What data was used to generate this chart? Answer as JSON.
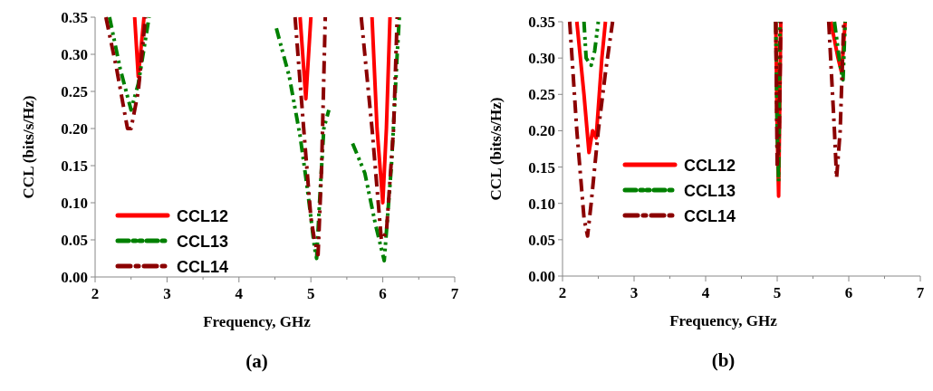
{
  "chart_data": [
    {
      "type": "line",
      "xlabel": "Frequency, GHz",
      "ylabel": "CCL (bits/s/Hz)",
      "annotations": [
        "(a)"
      ],
      "xlim": [
        2,
        7
      ],
      "xticks": [
        2,
        3,
        4,
        5,
        6,
        7
      ],
      "ylim": [
        0,
        0.35
      ],
      "yticks": [
        {
          "value": 0,
          "label": "0.00"
        },
        {
          "value": 0.05,
          "label": "0.05"
        },
        {
          "value": 0.1,
          "label": "0.10"
        },
        {
          "value": 0.15,
          "label": "0.15"
        },
        {
          "value": 0.2,
          "label": "0.20"
        },
        {
          "value": 0.25,
          "label": "0.25"
        },
        {
          "value": 0.3,
          "label": "0.30"
        },
        {
          "value": 0.35,
          "label": "0.35"
        }
      ],
      "legend": "bottom left",
      "grid": false,
      "series": [
        {
          "name": "CCL12",
          "color": "#ff0000",
          "line_style": "solid",
          "x": [
            2.55,
            2.6,
            2.68,
            2.7,
            4.85,
            4.93,
            5.0,
            5.02,
            5.85,
            5.92,
            6.0,
            6.05,
            6.1
          ],
          "values": [
            0.35,
            0.27,
            0.35,
            null,
            0.35,
            0.24,
            0.35,
            null,
            0.35,
            0.2,
            0.1,
            0.2,
            0.35
          ]
        },
        {
          "name": "CCL13",
          "color": "#008000",
          "line_style": "dotted",
          "x": [
            2.2,
            2.35,
            2.5,
            2.6,
            2.75,
            2.8,
            4.52,
            4.7,
            4.85,
            4.95,
            5.05,
            5.08,
            5.12,
            5.18,
            5.25,
            5.4,
            5.58,
            5.75,
            5.9,
            6.02,
            6.12,
            6.2,
            6.23
          ],
          "values": [
            0.35,
            0.28,
            0.225,
            0.26,
            0.35,
            null,
            0.335,
            0.27,
            0.19,
            0.12,
            0.04,
            0.025,
            0.1,
            0.2,
            0.225,
            null,
            0.18,
            0.14,
            0.07,
            0.022,
            0.15,
            0.3,
            0.35
          ]
        },
        {
          "name": "CCL14",
          "color": "#8b0000",
          "line_style": "dashed",
          "x": [
            2.15,
            2.3,
            2.45,
            2.5,
            2.6,
            2.7,
            2.75,
            4.78,
            4.9,
            5.0,
            5.05,
            5.1,
            5.15,
            5.2,
            5.3,
            5.7,
            5.85,
            5.98,
            6.05,
            6.15,
            6.2
          ],
          "values": [
            0.35,
            0.28,
            0.2,
            0.2,
            0.25,
            0.35,
            null,
            0.35,
            0.2,
            0.08,
            0.05,
            0.03,
            0.15,
            0.35,
            null,
            0.35,
            0.2,
            0.05,
            0.06,
            0.2,
            0.35
          ]
        }
      ]
    },
    {
      "type": "line",
      "xlabel": "Frequency, GHz",
      "ylabel": "CCL (bits/s/Hz)",
      "annotations": [
        "(b)"
      ],
      "xlim": [
        2,
        7
      ],
      "xticks": [
        2,
        3,
        4,
        5,
        6,
        7
      ],
      "ylim": [
        0,
        0.35
      ],
      "yticks": [
        {
          "value": 0,
          "label": "0.00"
        },
        {
          "value": 0.05,
          "label": "0.05"
        },
        {
          "value": 0.1,
          "label": "0.10"
        },
        {
          "value": 0.15,
          "label": "0.15"
        },
        {
          "value": 0.2,
          "label": "0.20"
        },
        {
          "value": 0.25,
          "label": "0.25"
        },
        {
          "value": 0.3,
          "label": "0.30"
        },
        {
          "value": 0.35,
          "label": "0.35"
        }
      ],
      "legend": "left",
      "grid": false,
      "series": [
        {
          "name": "CCL12",
          "color": "#ff0000",
          "line_style": "solid",
          "x": [
            2.2,
            2.3,
            2.37,
            2.42,
            2.47,
            2.55,
            2.6,
            2.8,
            4.98,
            5.0,
            5.02,
            5.05,
            5.5,
            5.75,
            5.85,
            5.9,
            5.95
          ],
          "values": [
            0.35,
            0.25,
            0.17,
            0.2,
            0.19,
            0.3,
            0.35,
            null,
            0.35,
            0.2,
            0.11,
            0.35,
            null,
            0.35,
            0.3,
            0.28,
            0.35
          ]
        },
        {
          "name": "CCL13",
          "color": "#008000",
          "line_style": "dotted",
          "x": [
            2.3,
            2.33,
            2.4,
            2.45,
            2.5,
            2.8,
            4.98,
            5.0,
            5.02,
            5.04,
            5.5,
            5.8,
            5.88,
            5.92,
            5.95
          ],
          "values": [
            0.35,
            0.3,
            0.29,
            0.31,
            0.35,
            null,
            0.35,
            0.2,
            0.13,
            0.35,
            null,
            0.35,
            0.29,
            0.27,
            0.35
          ]
        },
        {
          "name": "CCL14",
          "color": "#8b0000",
          "line_style": "dashed",
          "x": [
            2.1,
            2.2,
            2.3,
            2.35,
            2.4,
            2.5,
            2.6,
            2.7,
            2.9,
            4.98,
            5.0,
            5.03,
            5.05,
            5.5,
            5.72,
            5.8,
            5.83,
            5.88,
            5.93
          ],
          "values": [
            0.35,
            0.2,
            0.08,
            0.055,
            0.1,
            0.2,
            0.28,
            0.35,
            null,
            0.35,
            0.15,
            0.2,
            0.35,
            null,
            0.35,
            0.2,
            0.135,
            0.2,
            0.35
          ]
        }
      ]
    }
  ]
}
